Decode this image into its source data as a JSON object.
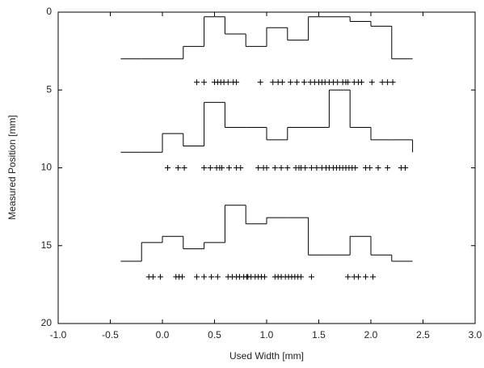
{
  "chart_data": {
    "type": "histogram",
    "xlabel": "Used Width [mm]",
    "ylabel": "Measured Position [mm]",
    "xlim": [
      -1.0,
      3.0
    ],
    "xticks": [
      {
        "value": -1.0,
        "label": "-1.0"
      },
      {
        "value": -0.5,
        "label": "-0.5"
      },
      {
        "value": 0,
        "label": "0.0"
      },
      0.5,
      {
        "value": 1.0,
        "label": "1.0"
      },
      1.5,
      {
        "value": 2.0,
        "label": "2.0"
      },
      2.5,
      {
        "value": 3.0,
        "label": "3.0"
      }
    ],
    "ylim": [
      0,
      20
    ],
    "yticks": [
      0,
      5,
      10,
      15,
      20
    ],
    "y_reversed": true,
    "color": "#000000",
    "bins": [
      -0.4,
      -0.2,
      0,
      0.2,
      0.4,
      0.6,
      0.8,
      1.0,
      1.2,
      1.4,
      1.6,
      1.8,
      2.0,
      2.2,
      2.4
    ],
    "series": [
      {
        "baseline": 3.0,
        "values": [
          3.0,
          3.0,
          3.0,
          2.2,
          0.3,
          1.4,
          2.2,
          1.0,
          1.8,
          0.3,
          0.3,
          0.6,
          0.9,
          3.0
        ]
      },
      {
        "baseline": 9.0,
        "values": [
          9.0,
          9.0,
          7.8,
          8.6,
          5.8,
          7.4,
          7.4,
          8.2,
          7.4,
          7.4,
          5.0,
          7.4,
          8.2,
          8.2
        ]
      },
      {
        "baseline": 16.0,
        "values": [
          16.0,
          14.8,
          14.4,
          15.2,
          14.8,
          12.4,
          13.6,
          13.2,
          13.2,
          15.6,
          15.6,
          14.4,
          15.6,
          16.0
        ]
      }
    ],
    "points": [
      {
        "y": 4.5,
        "x": [
          0.33,
          0.4,
          0.5,
          0.53,
          0.56,
          0.59,
          0.63,
          0.68,
          0.71,
          0.94,
          1.06,
          1.11,
          1.15,
          1.23,
          1.29,
          1.36,
          1.42,
          1.46,
          1.5,
          1.53,
          1.56,
          1.6,
          1.64,
          1.68,
          1.73,
          1.76,
          1.78,
          1.84,
          1.88,
          1.91,
          2.01,
          2.11,
          2.16,
          2.21
        ]
      },
      {
        "y": 10.0,
        "x": [
          0.05,
          0.15,
          0.21,
          0.4,
          0.46,
          0.52,
          0.55,
          0.57,
          0.64,
          0.71,
          0.75,
          0.92,
          0.97,
          1.0,
          1.08,
          1.14,
          1.2,
          1.28,
          1.31,
          1.33,
          1.37,
          1.43,
          1.48,
          1.53,
          1.57,
          1.6,
          1.64,
          1.67,
          1.7,
          1.73,
          1.76,
          1.79,
          1.82,
          1.85,
          1.95,
          1.99,
          2.07,
          2.16,
          2.29,
          2.33
        ]
      },
      {
        "y": 17.0,
        "x": [
          -0.13,
          -0.09,
          -0.02,
          0.13,
          0.16,
          0.19,
          0.33,
          0.4,
          0.47,
          0.53,
          0.63,
          0.67,
          0.71,
          0.74,
          0.78,
          0.81,
          0.82,
          0.85,
          0.89,
          0.92,
          0.95,
          0.98,
          1.08,
          1.11,
          1.14,
          1.18,
          1.21,
          1.24,
          1.27,
          1.3,
          1.33,
          1.43,
          1.78,
          1.84,
          1.88,
          1.95,
          2.02
        ]
      }
    ]
  }
}
